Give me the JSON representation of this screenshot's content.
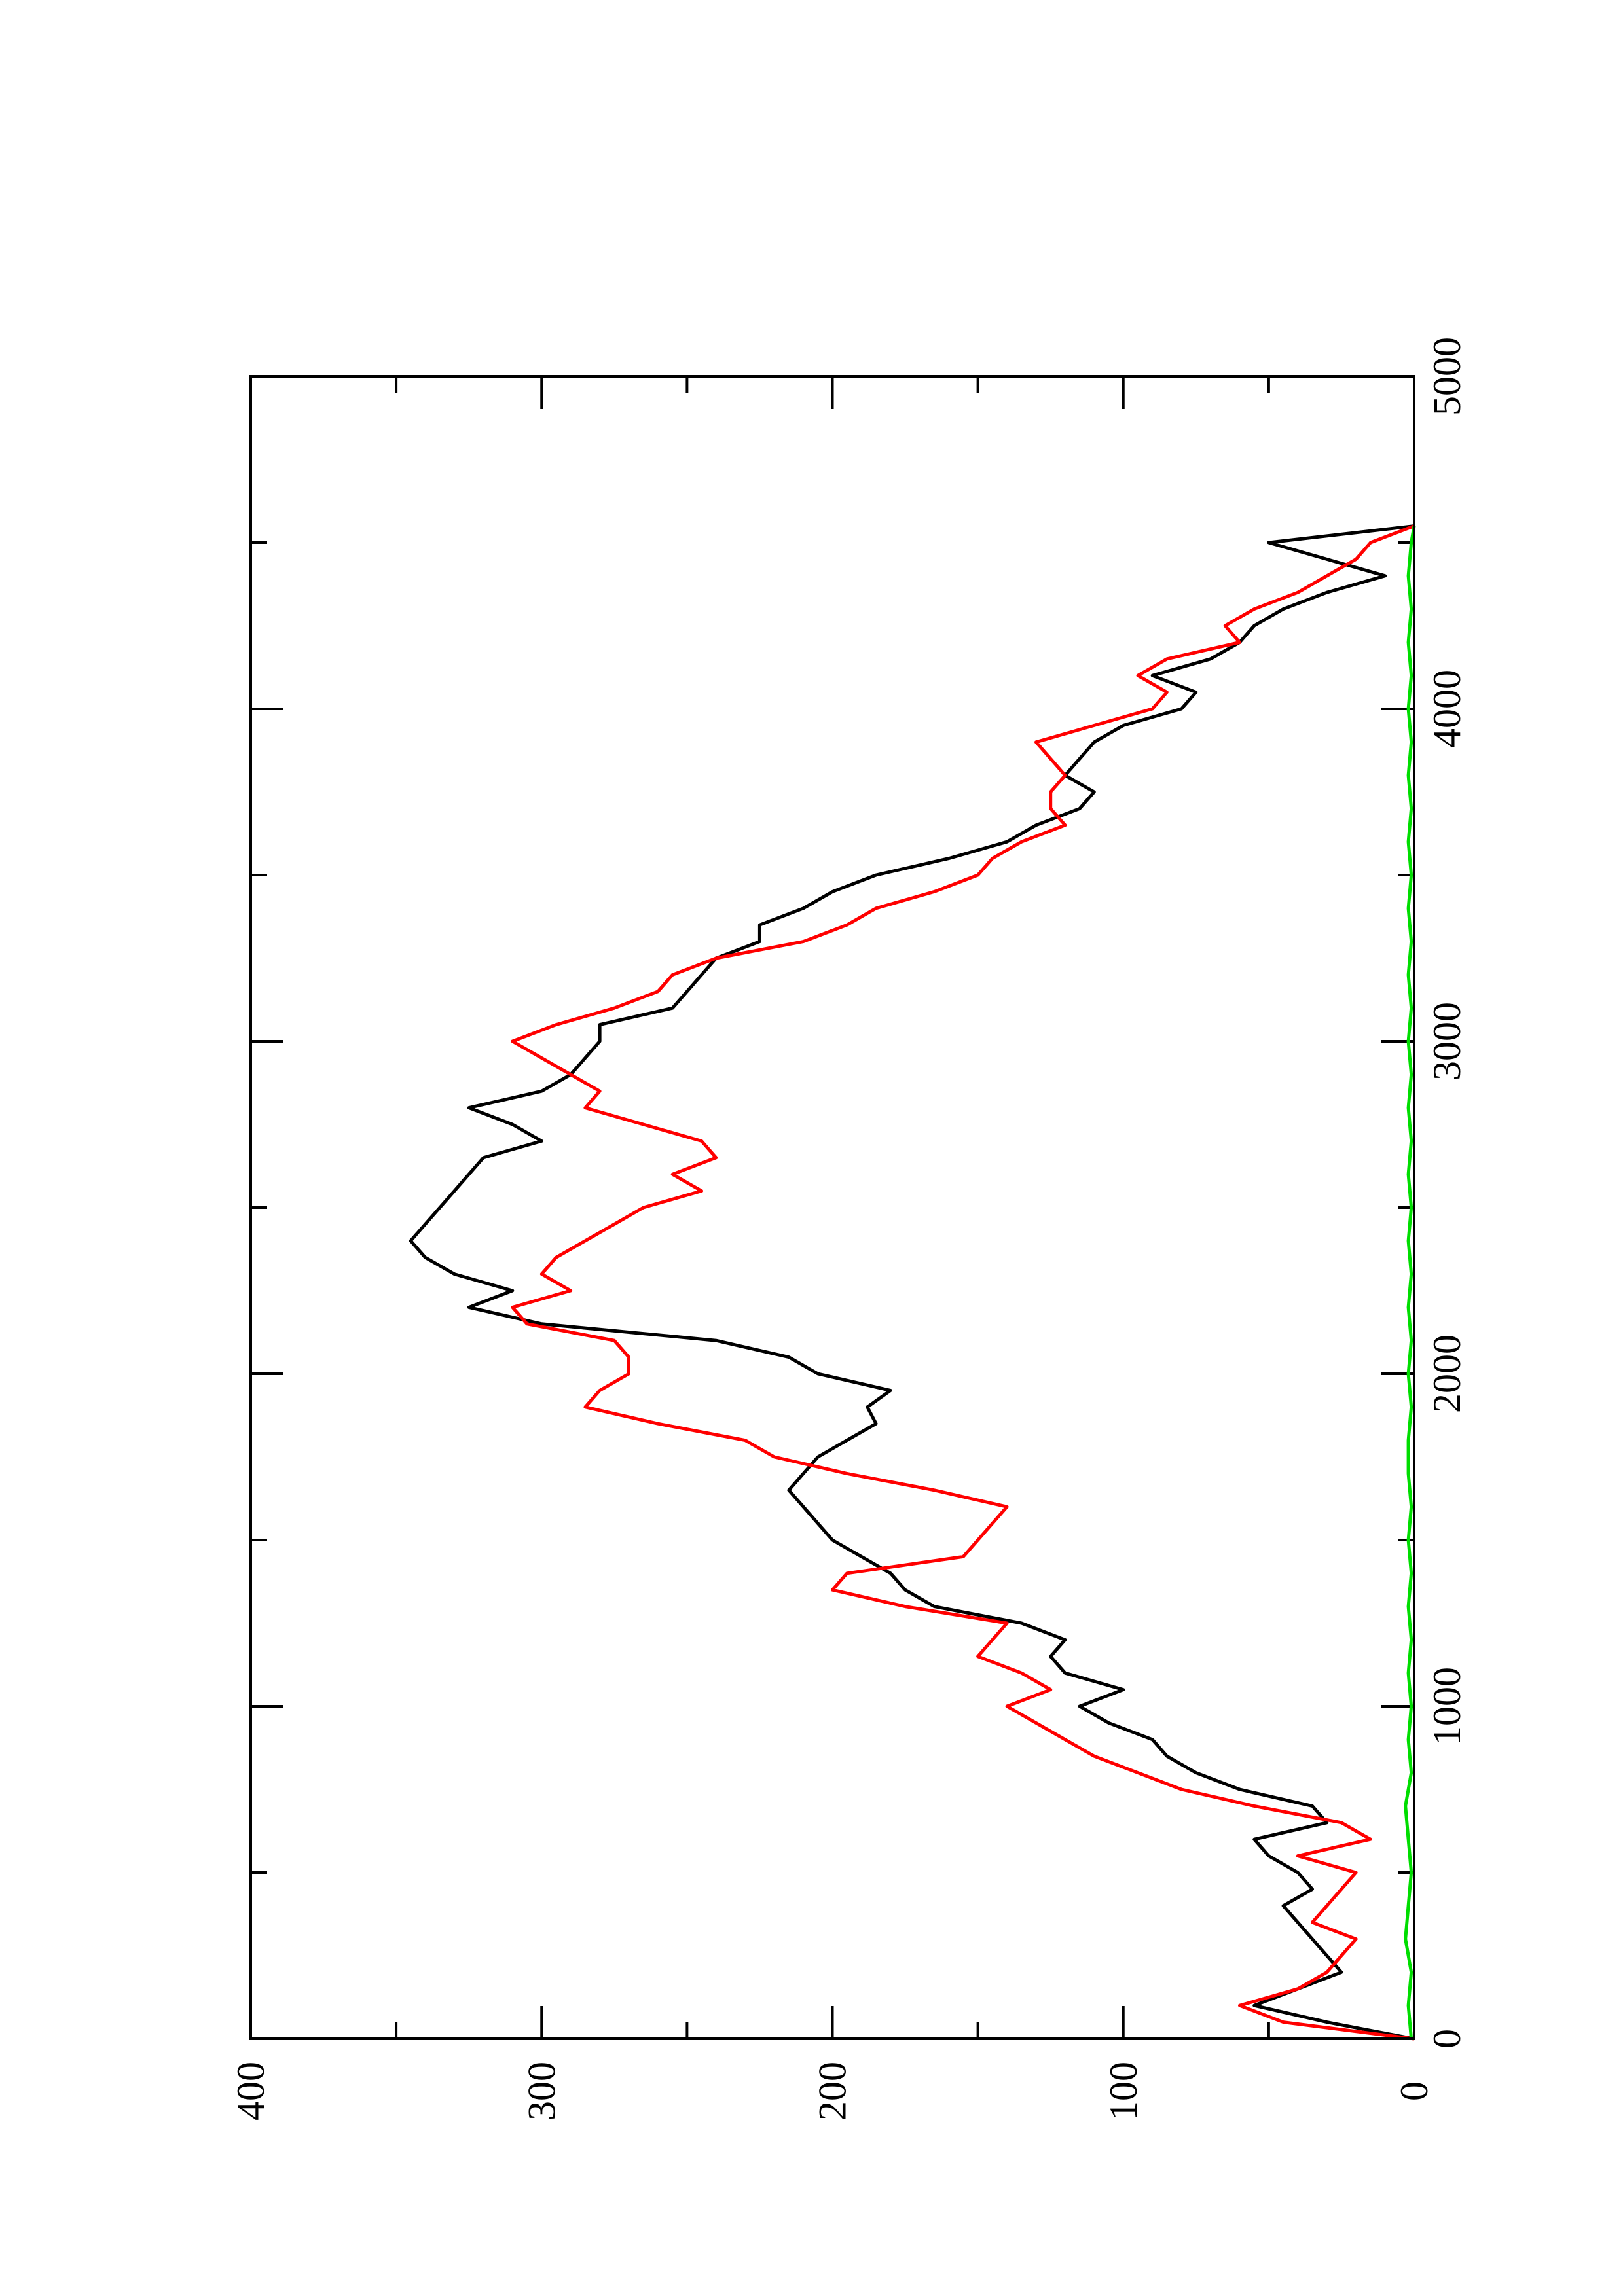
{
  "chart_data": {
    "type": "line",
    "orientation": "rotated-90-ccw",
    "title": "",
    "xlabel": "",
    "ylabel": "",
    "xlim": [
      0,
      5000
    ],
    "ylim": [
      0,
      400
    ],
    "x_ticks": [
      "0",
      "1000",
      "2000",
      "3000",
      "4000",
      "5000"
    ],
    "y_ticks": [
      "0",
      "100",
      "200",
      "300",
      "400"
    ],
    "grid": false,
    "legend": "none",
    "series": [
      {
        "color": "#000000",
        "x": [
          0,
          50,
          100,
          150,
          200,
          250,
          300,
          350,
          400,
          450,
          500,
          550,
          600,
          650,
          700,
          750,
          800,
          850,
          900,
          950,
          1000,
          1050,
          1100,
          1150,
          1200,
          1250,
          1300,
          1350,
          1400,
          1450,
          1500,
          1550,
          1600,
          1650,
          1700,
          1750,
          1800,
          1850,
          1900,
          1950,
          2000,
          2050,
          2100,
          2150,
          2200,
          2250,
          2300,
          2350,
          2400,
          2450,
          2500,
          2550,
          2600,
          2650,
          2700,
          2750,
          2800,
          2850,
          2900,
          2950,
          3000,
          3050,
          3100,
          3150,
          3200,
          3250,
          3300,
          3350,
          3400,
          3450,
          3500,
          3550,
          3600,
          3650,
          3700,
          3750,
          3800,
          3850,
          3900,
          3950,
          4000,
          4050,
          4100,
          4150,
          4200,
          4250,
          4300,
          4350,
          4400,
          4450,
          4500,
          4550
        ],
        "y": [
          0,
          30,
          55,
          40,
          25,
          30,
          35,
          40,
          45,
          35,
          40,
          50,
          55,
          30,
          35,
          60,
          75,
          85,
          90,
          105,
          115,
          100,
          120,
          125,
          120,
          135,
          165,
          175,
          180,
          190,
          200,
          205,
          210,
          215,
          210,
          205,
          195,
          185,
          188,
          180,
          205,
          215,
          240,
          300,
          325,
          310,
          330,
          340,
          345,
          340,
          335,
          330,
          325,
          320,
          300,
          310,
          325,
          300,
          290,
          285,
          280,
          280,
          255,
          250,
          245,
          240,
          225,
          225,
          210,
          200,
          185,
          160,
          140,
          130,
          115,
          110,
          120,
          115,
          110,
          100,
          80,
          75,
          90,
          70,
          60,
          55,
          45,
          30,
          10,
          30,
          50,
          0
        ]
      },
      {
        "color": "#ff0000",
        "x": [
          0,
          50,
          100,
          150,
          200,
          250,
          300,
          350,
          400,
          450,
          500,
          550,
          600,
          650,
          700,
          750,
          800,
          850,
          900,
          950,
          1000,
          1050,
          1100,
          1150,
          1200,
          1250,
          1300,
          1350,
          1400,
          1450,
          1500,
          1550,
          1600,
          1650,
          1700,
          1750,
          1800,
          1850,
          1900,
          1950,
          2000,
          2050,
          2100,
          2150,
          2200,
          2250,
          2300,
          2350,
          2400,
          2450,
          2500,
          2550,
          2600,
          2650,
          2700,
          2750,
          2800,
          2850,
          2900,
          2950,
          3000,
          3050,
          3100,
          3150,
          3200,
          3250,
          3300,
          3350,
          3400,
          3450,
          3500,
          3550,
          3600,
          3650,
          3700,
          3750,
          3800,
          3850,
          3900,
          3950,
          4000,
          4050,
          4100,
          4150,
          4200,
          4250,
          4300,
          4350,
          4400,
          4450,
          4500,
          4550
        ],
        "y": [
          0,
          45,
          60,
          40,
          30,
          25,
          20,
          35,
          30,
          25,
          20,
          40,
          15,
          25,
          55,
          80,
          95,
          110,
          120,
          130,
          140,
          125,
          135,
          150,
          145,
          140,
          175,
          200,
          195,
          155,
          150,
          145,
          140,
          165,
          195,
          220,
          230,
          260,
          285,
          280,
          270,
          270,
          275,
          305,
          310,
          290,
          300,
          295,
          285,
          275,
          265,
          245,
          255,
          240,
          245,
          265,
          285,
          280,
          290,
          300,
          310,
          295,
          275,
          260,
          255,
          240,
          210,
          195,
          185,
          165,
          150,
          145,
          135,
          120,
          125,
          125,
          120,
          125,
          130,
          110,
          90,
          85,
          95,
          85,
          60,
          65,
          55,
          40,
          30,
          20,
          15,
          0
        ]
      },
      {
        "color": "#00dd00",
        "x": [
          0,
          100,
          200,
          300,
          400,
          500,
          600,
          700,
          800,
          900,
          1000,
          1100,
          1200,
          1300,
          1400,
          1500,
          1600,
          1700,
          1800,
          1900,
          2000,
          2100,
          2200,
          2300,
          2400,
          2500,
          2600,
          2700,
          2800,
          2900,
          3000,
          3100,
          3200,
          3300,
          3400,
          3500,
          3600,
          3700,
          3800,
          3900,
          4000,
          4100,
          4200,
          4300,
          4400,
          4500,
          4550
        ],
        "y": [
          1,
          2,
          1,
          3,
          2,
          1,
          2,
          3,
          1,
          2,
          1,
          2,
          1,
          2,
          1,
          2,
          1,
          2,
          2,
          1,
          2,
          1,
          2,
          1,
          2,
          1,
          2,
          1,
          2,
          1,
          2,
          1,
          2,
          1,
          2,
          1,
          2,
          1,
          2,
          1,
          2,
          1,
          2,
          1,
          2,
          1,
          0
        ]
      }
    ]
  }
}
